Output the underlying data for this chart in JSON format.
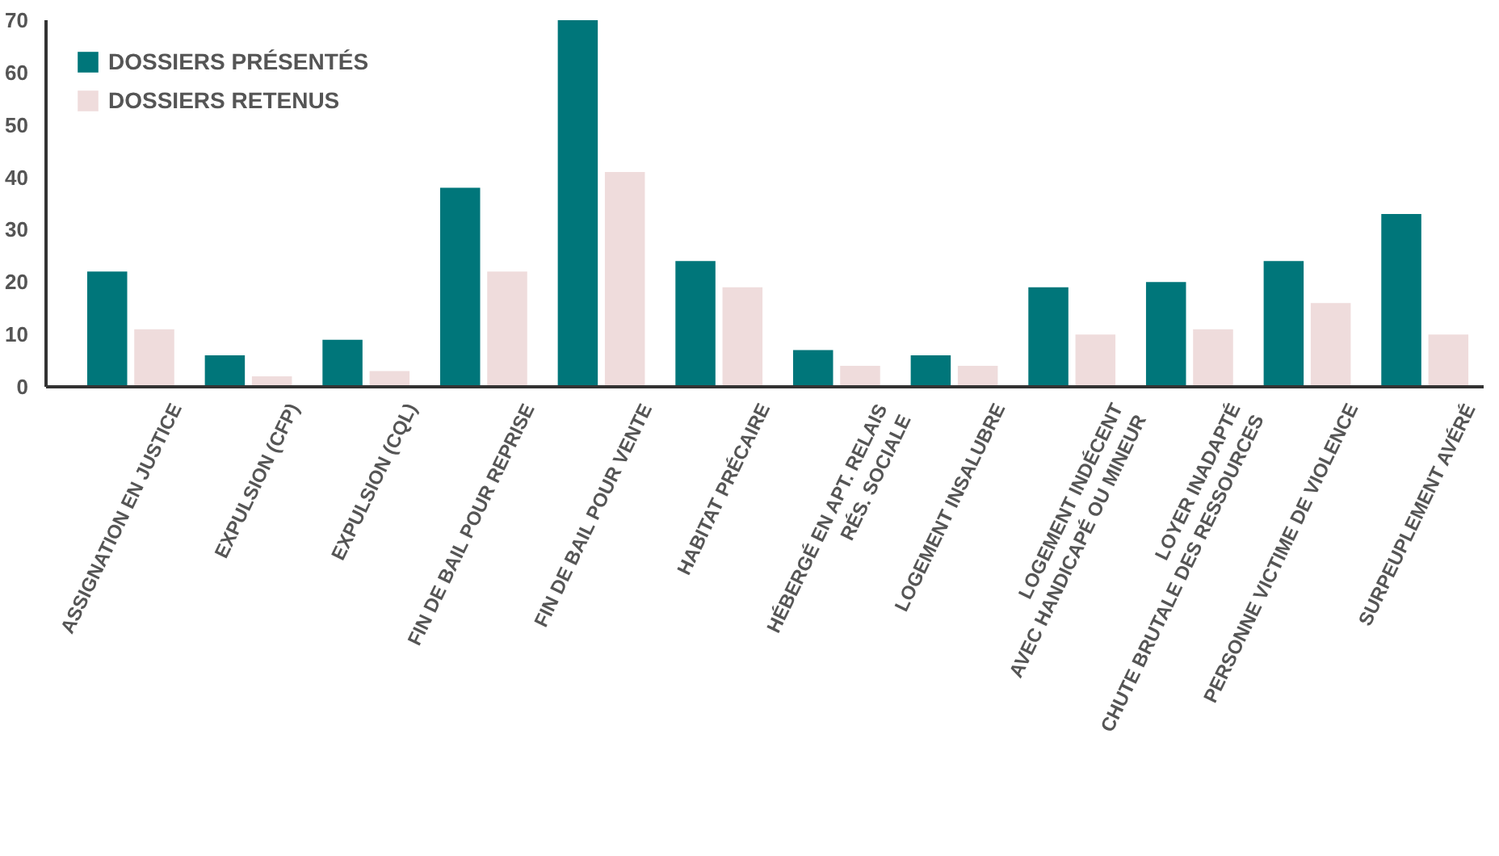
{
  "chart_data": {
    "type": "bar",
    "categories": [
      "ASSIGNATION EN JUSTICE",
      "EXPULSION (CFP)",
      "EXPULSION (CQL)",
      "FIN DE BAIL POUR REPRISE",
      "FIN DE BAIL POUR VENTE",
      "HABITAT PRÉCAIRE",
      "HÉBERGÉ EN APT. RELAIS\nRÉS. SOCIALE",
      "LOGEMENT INSALUBRE",
      "LOGEMENT INDÉCENT\nAVEC HANDICAPÉ OU MINEUR",
      "LOYER INADAPTÉ\nCHUTE BRUTALE DES RESSOURCES",
      "PERSONNE VICTIME DE VIOLENCE",
      "SURPEUPLEMENT AVÉRÉ"
    ],
    "series": [
      {
        "name": "DOSSIERS PRÉSENTÉS",
        "color": "#00767a",
        "values": [
          22,
          6,
          9,
          38,
          70,
          24,
          7,
          6,
          19,
          20,
          24,
          33
        ]
      },
      {
        "name": "DOSSIERS RETENUS",
        "color": "#efdcdc",
        "values": [
          11,
          2,
          3,
          22,
          41,
          19,
          4,
          4,
          10,
          11,
          16,
          10
        ]
      }
    ],
    "ylim": [
      0,
      70
    ],
    "yticks": [
      0,
      10,
      20,
      30,
      40,
      50,
      60,
      70
    ],
    "grid": false,
    "legend": "top left"
  }
}
